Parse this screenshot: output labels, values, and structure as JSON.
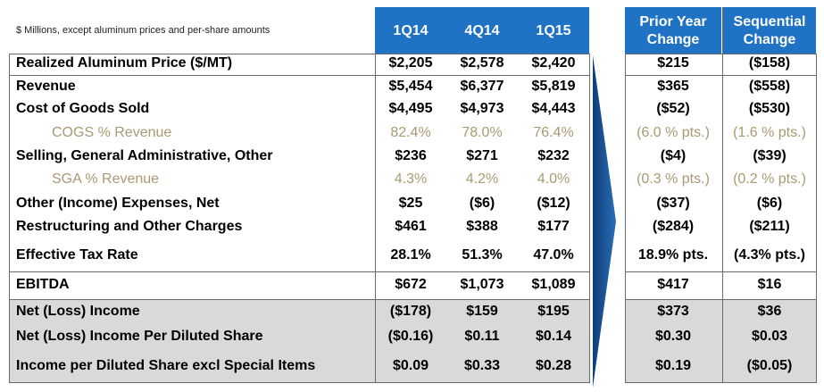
{
  "note": "$ Millions, except aluminum prices and per-share amounts",
  "columns": {
    "q1": "1Q14",
    "q2": "4Q14",
    "q3": "1Q15",
    "c1a": "Prior Year",
    "c1b": "Change",
    "c2a": "Sequential",
    "c2b": "Change"
  },
  "rows": [
    {
      "label": "Realized Aluminum Price ($/MT)",
      "v": [
        "$2,205",
        "$2,578",
        "$2,420"
      ],
      "c": [
        "$215",
        "($158)"
      ],
      "sub": false
    },
    {
      "label": "Revenue",
      "v": [
        "$5,454",
        "$6,377",
        "$5,819"
      ],
      "c": [
        "$365",
        "($558)"
      ],
      "sub": false
    },
    {
      "label": "Cost of Goods Sold",
      "v": [
        "$4,495",
        "$4,973",
        "$4,443"
      ],
      "c": [
        "($52)",
        "($530)"
      ],
      "sub": false
    },
    {
      "label": "COGS % Revenue",
      "v": [
        "82.4%",
        "78.0%",
        "76.4%"
      ],
      "c": [
        "(6.0 % pts.)",
        "(1.6 % pts.)"
      ],
      "sub": true
    },
    {
      "label": "Selling, General Administrative, Other",
      "v": [
        "$236",
        "$271",
        "$232"
      ],
      "c": [
        "($4)",
        "($39)"
      ],
      "sub": false
    },
    {
      "label": "SGA % Revenue",
      "v": [
        "4.3%",
        "4.2%",
        "4.0%"
      ],
      "c": [
        "(0.3 % pts.)",
        "(0.2 % pts.)"
      ],
      "sub": true
    },
    {
      "label": "Other (Income) Expenses, Net",
      "v": [
        "$25",
        "($6)",
        "($12)"
      ],
      "c": [
        "($37)",
        "($6)"
      ],
      "sub": false
    },
    {
      "label": "Restructuring and Other Charges",
      "v": [
        "$461",
        "$388",
        "$177"
      ],
      "c": [
        "($284)",
        "($211)"
      ],
      "sub": false
    },
    {
      "label": "Effective Tax Rate",
      "v": [
        "28.1%",
        "51.3%",
        "47.0%"
      ],
      "c": [
        "18.9% pts.",
        "(4.3% pts.)"
      ],
      "sub": false
    },
    {
      "label": "EBITDA",
      "v": [
        "$672",
        "$1,073",
        "$1,089"
      ],
      "c": [
        "$417",
        "$16"
      ],
      "sub": false
    },
    {
      "label": "Net (Loss) Income",
      "v": [
        "($178)",
        "$159",
        "$195"
      ],
      "c": [
        "$373",
        "$36"
      ],
      "sub": false
    },
    {
      "label": "Net (Loss) Income Per Diluted Share",
      "v": [
        "($0.16)",
        "$0.11",
        "$0.14"
      ],
      "c": [
        "$0.30",
        "$0.03"
      ],
      "sub": false
    },
    {
      "label": "Income per Diluted Share excl Special Items",
      "v": [
        "$0.09",
        "$0.33",
        "$0.28"
      ],
      "c": [
        "$0.19",
        "($0.05)"
      ],
      "sub": false
    }
  ],
  "colors": {
    "header": "#1f72c4",
    "subtext": "#a89a72",
    "band": "#d9d9d9"
  }
}
